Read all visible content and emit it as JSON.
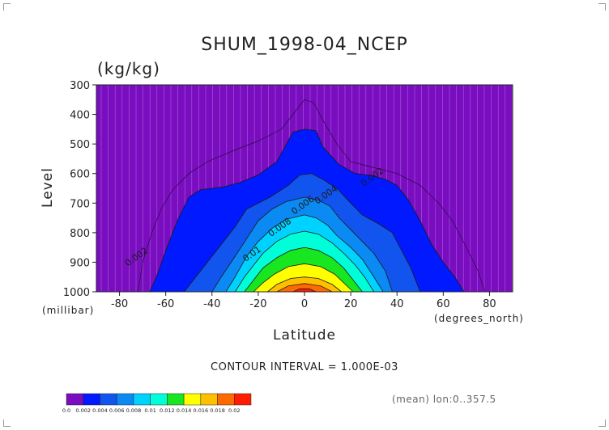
{
  "chart_data": {
    "type": "contour",
    "title": "SHUM_1998-04_NCEP",
    "units": "(kg/kg)",
    "xlabel": "Latitude",
    "x_units": "(degrees_north)",
    "ylabel": "Level",
    "y_units": "(millibar)",
    "xlim": [
      -90,
      90
    ],
    "ylim": [
      1000,
      300
    ],
    "x_ticks": [
      -80,
      -60,
      -40,
      -20,
      0,
      20,
      40,
      60,
      80
    ],
    "y_ticks": [
      300,
      400,
      500,
      600,
      700,
      800,
      900,
      1000
    ],
    "contour_interval_text": "CONTOUR INTERVAL = 1.000E-03",
    "footnote": "(mean) lon:0..357.5",
    "colorbar": {
      "boundaries": [
        "0.0",
        "0.002",
        "0.004",
        "0.006",
        "0.008",
        "0.01",
        "0.012",
        "0.014",
        "0.016",
        "0.018",
        "0.02"
      ],
      "colors": [
        "#7a0dc0",
        "#0019ff",
        "#1255ee",
        "#0b8af4",
        "#00d2ff",
        "#00ffd8",
        "#18e620",
        "#ffff00",
        "#ffc000",
        "#ff6a00",
        "#ff1c00"
      ]
    },
    "contour_labels": [
      {
        "text": "0.002",
        "lat": -72,
        "lev": 890
      },
      {
        "text": "0.002",
        "lat": 30,
        "lev": 620
      },
      {
        "text": "0.004",
        "lat": 10,
        "lev": 680
      },
      {
        "text": "0.006",
        "lat": 0,
        "lev": 715
      },
      {
        "text": "0.008",
        "lat": -10,
        "lev": 790
      },
      {
        "text": "0.01",
        "lat": -22,
        "lev": 880
      }
    ],
    "filled_levels": [
      {
        "threshold": "0.002",
        "boundary": [
          [
            -67,
            1000
          ],
          [
            -64,
            950
          ],
          [
            -60,
            860
          ],
          [
            -55,
            760
          ],
          [
            -50,
            680
          ],
          [
            -45,
            655
          ],
          [
            -35,
            645
          ],
          [
            -28,
            630
          ],
          [
            -20,
            605
          ],
          [
            -12,
            560
          ],
          [
            -5,
            460
          ],
          [
            0,
            450
          ],
          [
            5,
            455
          ],
          [
            8,
            510
          ],
          [
            15,
            570
          ],
          [
            22,
            600
          ],
          [
            30,
            608
          ],
          [
            35,
            620
          ],
          [
            40,
            640
          ],
          [
            45,
            690
          ],
          [
            50,
            760
          ],
          [
            55,
            840
          ],
          [
            60,
            900
          ],
          [
            65,
            950
          ],
          [
            69,
            1000
          ]
        ]
      },
      {
        "threshold": "0.004",
        "boundary": [
          [
            -52,
            1000
          ],
          [
            -48,
            960
          ],
          [
            -42,
            900
          ],
          [
            -36,
            840
          ],
          [
            -30,
            780
          ],
          [
            -25,
            720
          ],
          [
            -15,
            680
          ],
          [
            -7,
            640
          ],
          [
            -2,
            605
          ],
          [
            3,
            600
          ],
          [
            8,
            620
          ],
          [
            14,
            650
          ],
          [
            20,
            700
          ],
          [
            25,
            740
          ],
          [
            32,
            770
          ],
          [
            38,
            800
          ],
          [
            42,
            860
          ],
          [
            46,
            920
          ],
          [
            50,
            1000
          ]
        ]
      },
      {
        "threshold": "0.006",
        "boundary": [
          [
            -40,
            1000
          ],
          [
            -36,
            950
          ],
          [
            -30,
            880
          ],
          [
            -25,
            820
          ],
          [
            -20,
            760
          ],
          [
            -14,
            720
          ],
          [
            -8,
            695
          ],
          [
            0,
            680
          ],
          [
            6,
            690
          ],
          [
            11,
            710
          ],
          [
            15,
            750
          ],
          [
            20,
            790
          ],
          [
            25,
            830
          ],
          [
            30,
            870
          ],
          [
            35,
            930
          ],
          [
            38,
            1000
          ]
        ]
      },
      {
        "threshold": "0.008",
        "boundary": [
          [
            -34,
            1000
          ],
          [
            -30,
            950
          ],
          [
            -25,
            880
          ],
          [
            -20,
            830
          ],
          [
            -14,
            785
          ],
          [
            -8,
            755
          ],
          [
            0,
            740
          ],
          [
            5,
            750
          ],
          [
            10,
            775
          ],
          [
            14,
            810
          ],
          [
            20,
            850
          ],
          [
            25,
            890
          ],
          [
            30,
            950
          ],
          [
            34,
            1000
          ]
        ]
      },
      {
        "threshold": "0.01",
        "boundary": [
          [
            -30,
            1000
          ],
          [
            -26,
            950
          ],
          [
            -22,
            910
          ],
          [
            -18,
            870
          ],
          [
            -12,
            830
          ],
          [
            -6,
            805
          ],
          [
            0,
            795
          ],
          [
            6,
            805
          ],
          [
            12,
            835
          ],
          [
            17,
            870
          ],
          [
            22,
            910
          ],
          [
            26,
            950
          ],
          [
            30,
            1000
          ]
        ]
      },
      {
        "threshold": "0.012",
        "boundary": [
          [
            -26,
            1000
          ],
          [
            -22,
            960
          ],
          [
            -18,
            920
          ],
          [
            -12,
            885
          ],
          [
            -6,
            860
          ],
          [
            0,
            850
          ],
          [
            6,
            860
          ],
          [
            12,
            885
          ],
          [
            17,
            920
          ],
          [
            21,
            960
          ],
          [
            25,
            1000
          ]
        ]
      },
      {
        "threshold": "0.014",
        "boundary": [
          [
            -22,
            1000
          ],
          [
            -18,
            970
          ],
          [
            -13,
            940
          ],
          [
            -7,
            915
          ],
          [
            0,
            905
          ],
          [
            7,
            915
          ],
          [
            13,
            940
          ],
          [
            17,
            970
          ],
          [
            21,
            1000
          ]
        ]
      },
      {
        "threshold": "0.016",
        "boundary": [
          [
            -16,
            1000
          ],
          [
            -12,
            975
          ],
          [
            -6,
            955
          ],
          [
            0,
            950
          ],
          [
            6,
            955
          ],
          [
            12,
            975
          ],
          [
            16,
            1000
          ]
        ]
      },
      {
        "threshold": "0.018",
        "boundary": [
          [
            -12,
            1000
          ],
          [
            -7,
            980
          ],
          [
            0,
            972
          ],
          [
            7,
            980
          ],
          [
            12,
            1000
          ]
        ]
      },
      {
        "threshold": "0.02",
        "boundary": [
          [
            -5,
            1000
          ],
          [
            -2,
            990
          ],
          [
            2,
            990
          ],
          [
            5,
            1000
          ]
        ]
      }
    ],
    "outer_contour": {
      "threshold": "0.0005",
      "boundary": [
        [
          -72,
          1000
        ],
        [
          -70,
          900
        ],
        [
          -66,
          800
        ],
        [
          -62,
          720
        ],
        [
          -57,
          655
        ],
        [
          -50,
          600
        ],
        [
          -42,
          560
        ],
        [
          -30,
          520
        ],
        [
          -20,
          490
        ],
        [
          -10,
          450
        ],
        [
          -4,
          390
        ],
        [
          0,
          350
        ],
        [
          4,
          360
        ],
        [
          8,
          420
        ],
        [
          14,
          500
        ],
        [
          20,
          560
        ],
        [
          30,
          580
        ],
        [
          40,
          600
        ],
        [
          50,
          640
        ],
        [
          58,
          700
        ],
        [
          64,
          760
        ],
        [
          70,
          850
        ],
        [
          75,
          930
        ],
        [
          78,
          1000
        ]
      ]
    }
  }
}
